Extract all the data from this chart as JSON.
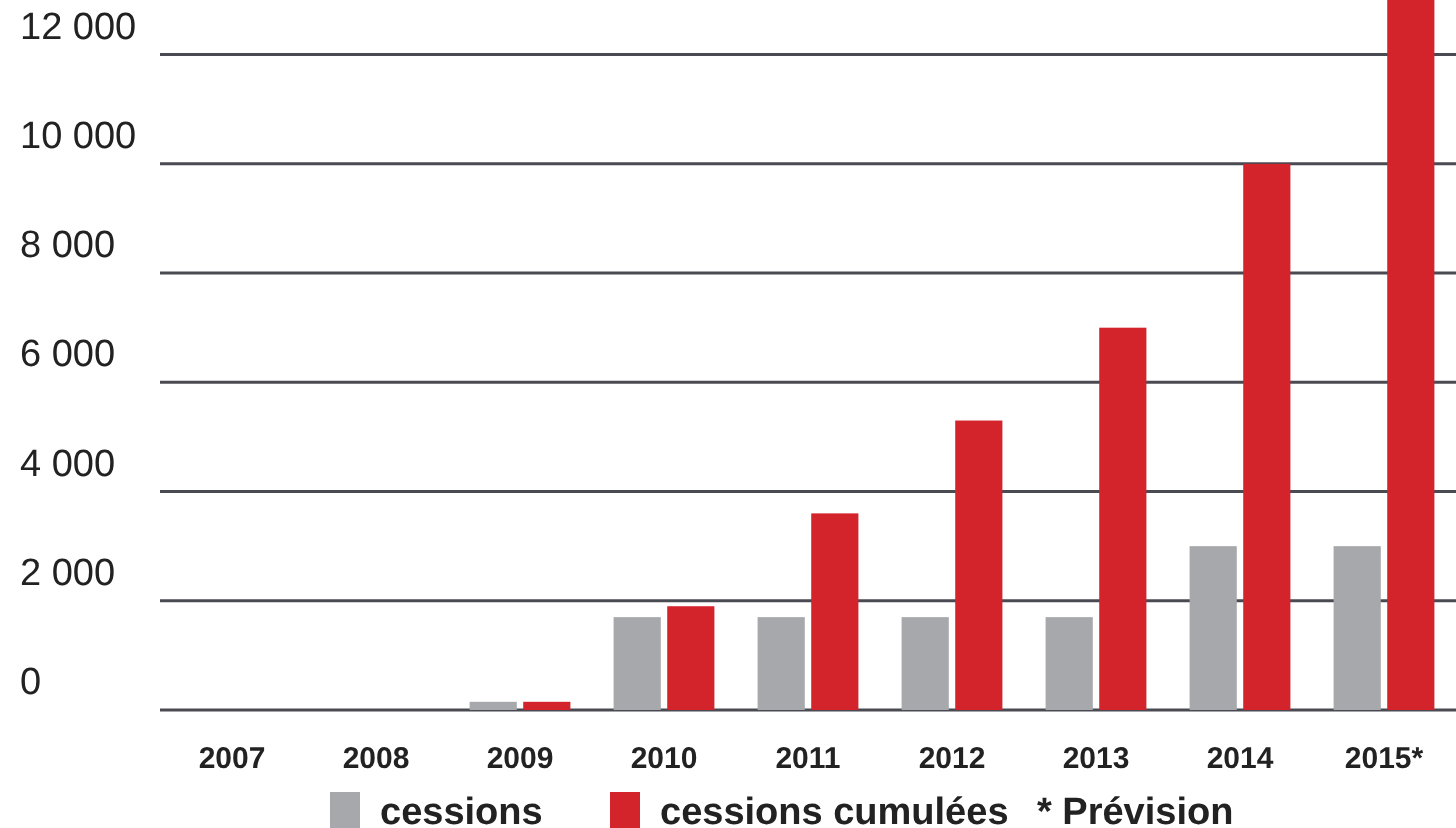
{
  "chart_data": {
    "type": "bar",
    "categories": [
      "2007",
      "2008",
      "2009",
      "2010",
      "2011",
      "2012",
      "2013",
      "2014",
      "2015*"
    ],
    "series": [
      {
        "name": "cessions",
        "color": "#a6a8ab",
        "values": [
          0,
          0,
          150,
          1700,
          1700,
          1700,
          1700,
          3000,
          3000
        ]
      },
      {
        "name": "cessions cumulées",
        "color": "#d3232b",
        "values": [
          0,
          0,
          150,
          1900,
          3600,
          5300,
          7000,
          10000,
          13000
        ]
      }
    ],
    "ylim": [
      0,
      13000
    ],
    "yticks": [
      0,
      {
        "value": 2000,
        "label": "2 000"
      },
      {
        "value": 4000,
        "label": "4 000"
      },
      {
        "value": 6000,
        "label": "6 000"
      },
      {
        "value": 8000,
        "label": "8 000"
      },
      {
        "value": 10000,
        "label": "10 000"
      },
      {
        "value": 12000,
        "label": "12 000"
      }
    ],
    "grid": "y",
    "legend": "bottom",
    "annotations": [
      "* Prévision"
    ]
  }
}
